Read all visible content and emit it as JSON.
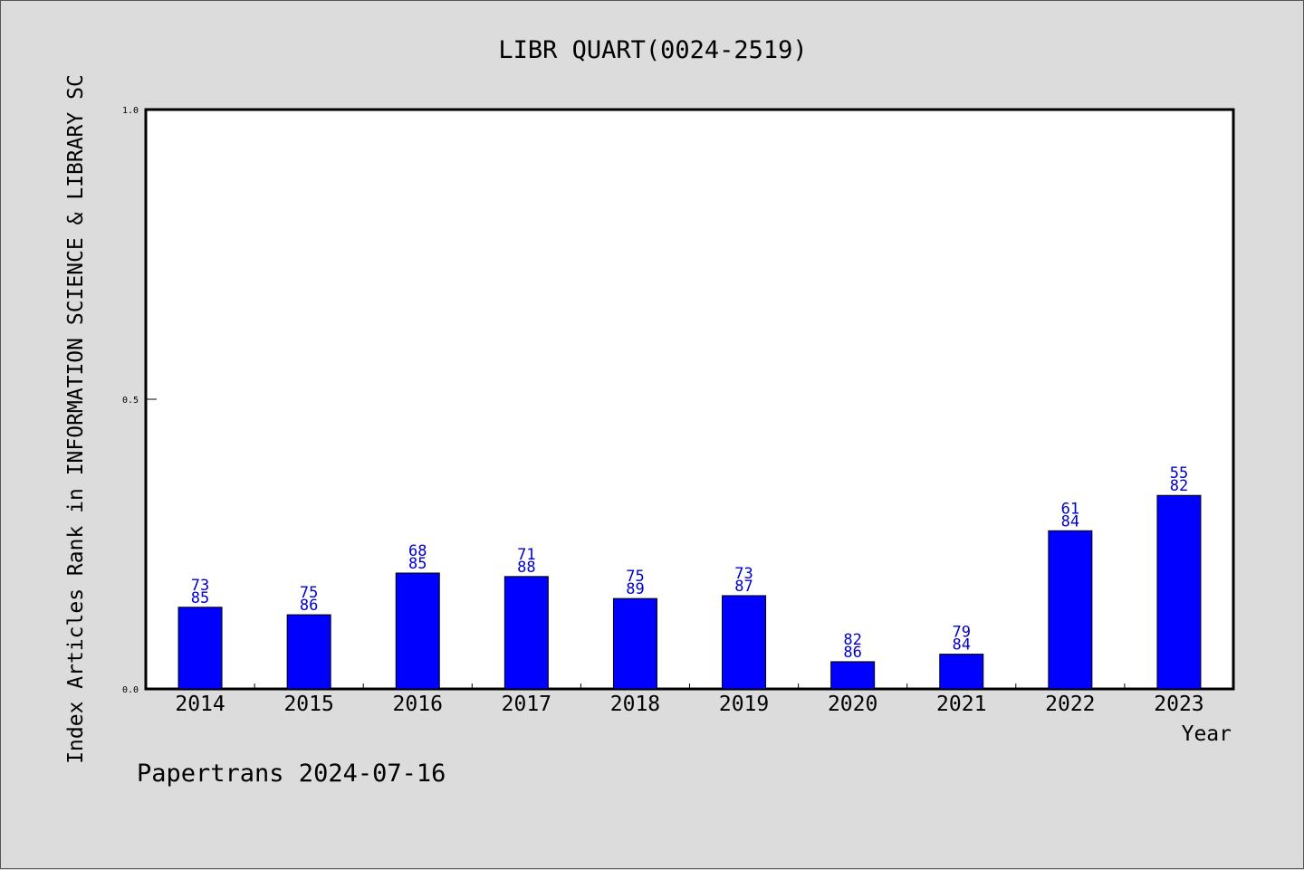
{
  "chart_data": {
    "type": "bar",
    "title": "LIBR QUART(0024-2519)",
    "xlabel": "Year",
    "ylabel": "Index Articles Rank in INFORMATION SCIENCE & LIBRARY SC",
    "ylim": [
      0.0,
      1.0
    ],
    "yticks": [
      "0.0",
      "0.5",
      "1.0"
    ],
    "categories": [
      "2014",
      "2015",
      "2016",
      "2017",
      "2018",
      "2019",
      "2020",
      "2021",
      "2022",
      "2023"
    ],
    "values": [
      0.141,
      0.128,
      0.2,
      0.194,
      0.156,
      0.161,
      0.047,
      0.06,
      0.273,
      0.334
    ],
    "rank_labels": [
      "73",
      "75",
      "68",
      "71",
      "75",
      "73",
      "82",
      "79",
      "61",
      "55"
    ],
    "total_labels": [
      "85",
      "86",
      "85",
      "88",
      "89",
      "87",
      "86",
      "84",
      "84",
      "82"
    ],
    "footer": "Papertrans 2024-07-16",
    "colors": {
      "bar": "#0000ff",
      "label": "#0000cc",
      "background": "#dcdcdc",
      "plot": "#ffffff"
    }
  }
}
